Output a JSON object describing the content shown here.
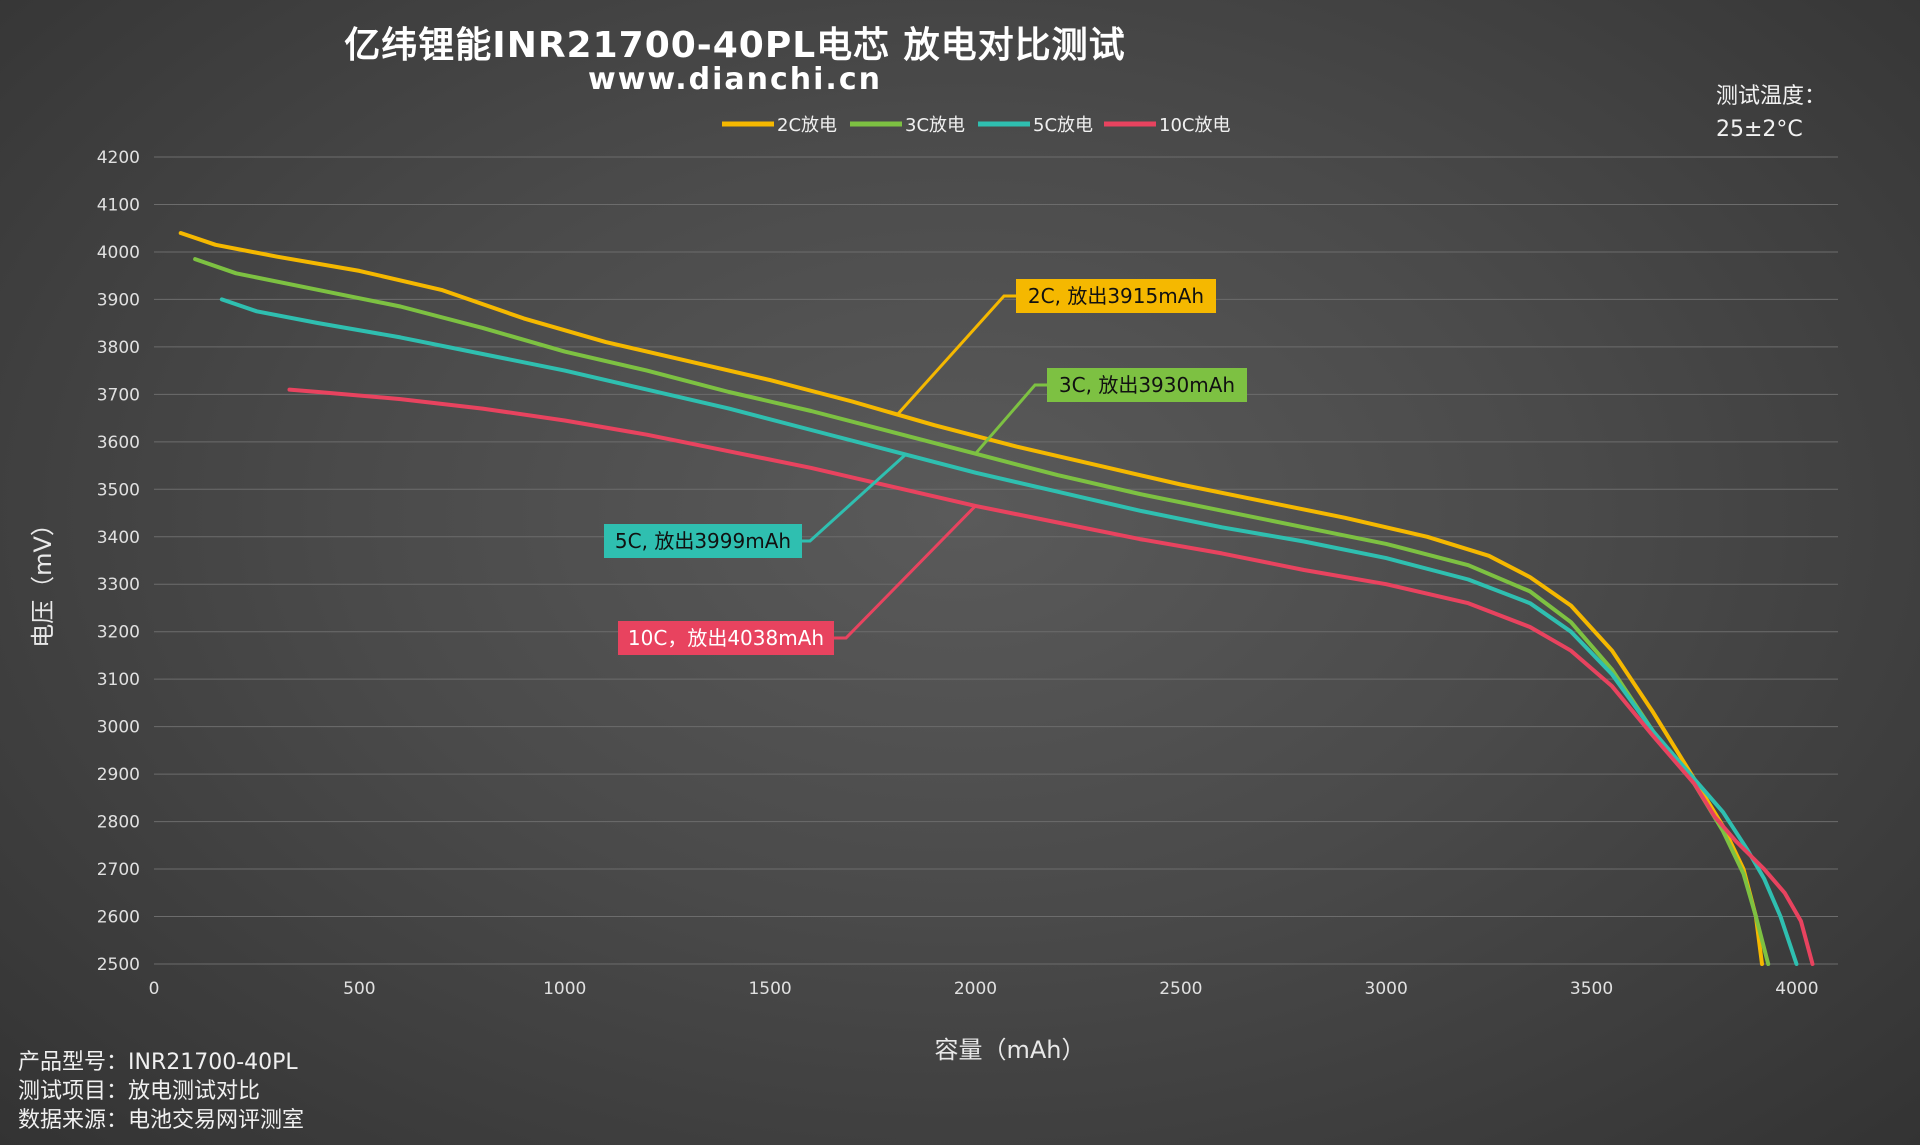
{
  "header": {
    "title": "亿纬锂能INR21700-40PL电芯 放电对比测试",
    "subtitle": "www.dianchi.cn"
  },
  "temperature": {
    "label": "测试温度：",
    "value": "25±2°C"
  },
  "footer": {
    "model": "产品型号：INR21700-40PL",
    "item": "测试项目：放电测试对比",
    "source": "数据来源：电池交易网评测室"
  },
  "chart_data": {
    "type": "line",
    "xlabel": "容量（mAh）",
    "ylabel": "电压（mV）",
    "xlim": [
      0,
      4100
    ],
    "ylim": [
      2500,
      4200
    ],
    "xticks": [
      0,
      500,
      1000,
      1500,
      2000,
      2500,
      3000,
      3500,
      4000
    ],
    "yticks": [
      2500,
      2600,
      2700,
      2800,
      2900,
      3000,
      3100,
      3200,
      3300,
      3400,
      3500,
      3600,
      3700,
      3800,
      3900,
      4000,
      4100,
      4200
    ],
    "grid": "horizontal",
    "legend_position": "top-center",
    "series": [
      {
        "name": "2C放电",
        "color": "#f5b800",
        "callout": "2C, 放出3915mAh",
        "points": [
          [
            65,
            4040
          ],
          [
            150,
            4015
          ],
          [
            300,
            3990
          ],
          [
            500,
            3960
          ],
          [
            700,
            3920
          ],
          [
            900,
            3860
          ],
          [
            1100,
            3810
          ],
          [
            1300,
            3770
          ],
          [
            1500,
            3730
          ],
          [
            1700,
            3685
          ],
          [
            1900,
            3635
          ],
          [
            2100,
            3590
          ],
          [
            2300,
            3550
          ],
          [
            2500,
            3510
          ],
          [
            2700,
            3475
          ],
          [
            2900,
            3440
          ],
          [
            3100,
            3400
          ],
          [
            3250,
            3360
          ],
          [
            3350,
            3315
          ],
          [
            3450,
            3255
          ],
          [
            3550,
            3160
          ],
          [
            3650,
            3030
          ],
          [
            3750,
            2890
          ],
          [
            3820,
            2790
          ],
          [
            3870,
            2700
          ],
          [
            3900,
            2600
          ],
          [
            3915,
            2500
          ]
        ]
      },
      {
        "name": "3C放电",
        "color": "#7dc142",
        "callout": "3C, 放出3930mAh",
        "points": [
          [
            100,
            3985
          ],
          [
            200,
            3955
          ],
          [
            400,
            3920
          ],
          [
            600,
            3885
          ],
          [
            800,
            3840
          ],
          [
            1000,
            3790
          ],
          [
            1200,
            3750
          ],
          [
            1400,
            3705
          ],
          [
            1600,
            3665
          ],
          [
            1800,
            3620
          ],
          [
            2000,
            3575
          ],
          [
            2200,
            3530
          ],
          [
            2400,
            3490
          ],
          [
            2600,
            3455
          ],
          [
            2800,
            3420
          ],
          [
            3000,
            3385
          ],
          [
            3200,
            3340
          ],
          [
            3350,
            3285
          ],
          [
            3450,
            3220
          ],
          [
            3550,
            3120
          ],
          [
            3650,
            2990
          ],
          [
            3750,
            2880
          ],
          [
            3820,
            2780
          ],
          [
            3870,
            2690
          ],
          [
            3900,
            2600
          ],
          [
            3930,
            2500
          ]
        ]
      },
      {
        "name": "5C放电",
        "color": "#2fbfb0",
        "callout": "5C, 放出3999mAh",
        "points": [
          [
            165,
            3900
          ],
          [
            250,
            3875
          ],
          [
            400,
            3850
          ],
          [
            600,
            3820
          ],
          [
            800,
            3785
          ],
          [
            1000,
            3750
          ],
          [
            1200,
            3710
          ],
          [
            1400,
            3670
          ],
          [
            1600,
            3625
          ],
          [
            1800,
            3580
          ],
          [
            2000,
            3535
          ],
          [
            2200,
            3495
          ],
          [
            2400,
            3455
          ],
          [
            2600,
            3420
          ],
          [
            2800,
            3390
          ],
          [
            3000,
            3355
          ],
          [
            3200,
            3310
          ],
          [
            3350,
            3260
          ],
          [
            3450,
            3200
          ],
          [
            3550,
            3110
          ],
          [
            3650,
            2990
          ],
          [
            3750,
            2890
          ],
          [
            3820,
            2820
          ],
          [
            3880,
            2740
          ],
          [
            3920,
            2680
          ],
          [
            3960,
            2600
          ],
          [
            3999,
            2500
          ]
        ]
      },
      {
        "name": "10C放电",
        "color": "#e8435f",
        "callout": "10C，放出4038mAh",
        "points": [
          [
            330,
            3710
          ],
          [
            400,
            3705
          ],
          [
            600,
            3690
          ],
          [
            800,
            3670
          ],
          [
            1000,
            3645
          ],
          [
            1200,
            3615
          ],
          [
            1400,
            3580
          ],
          [
            1600,
            3545
          ],
          [
            1800,
            3505
          ],
          [
            2000,
            3465
          ],
          [
            2200,
            3430
          ],
          [
            2400,
            3395
          ],
          [
            2600,
            3365
          ],
          [
            2800,
            3330
          ],
          [
            3000,
            3300
          ],
          [
            3200,
            3260
          ],
          [
            3350,
            3210
          ],
          [
            3450,
            3160
          ],
          [
            3550,
            3085
          ],
          [
            3650,
            2980
          ],
          [
            3750,
            2880
          ],
          [
            3800,
            2810
          ],
          [
            3850,
            2760
          ],
          [
            3920,
            2700
          ],
          [
            3970,
            2650
          ],
          [
            4010,
            2590
          ],
          [
            4038,
            2500
          ]
        ]
      }
    ]
  }
}
